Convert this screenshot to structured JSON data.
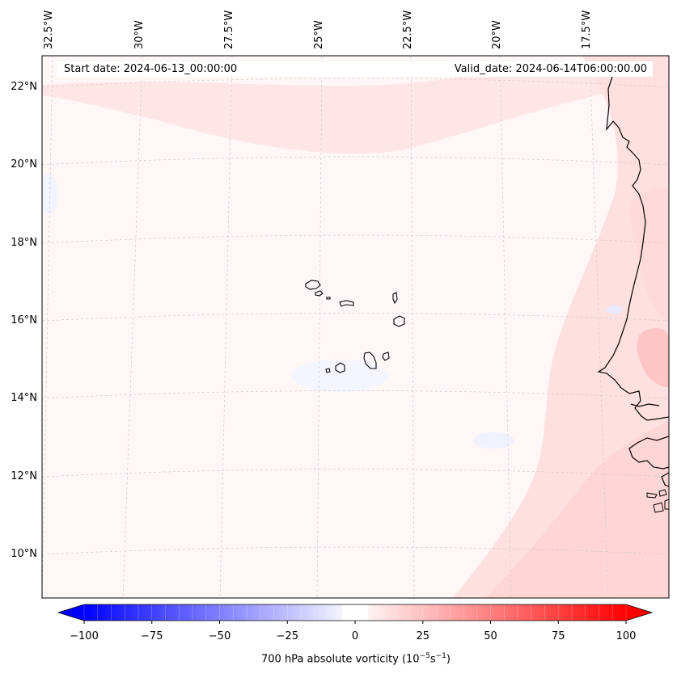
{
  "map": {
    "start_date": "Start date: 2024-06-13_00:00:00",
    "valid_date": "Valid_date: 2024-06-14T06:00:00.00",
    "lon_labels": [
      "32.5°W",
      "30°W",
      "27.5°W",
      "25°W",
      "22.5°W",
      "20°W",
      "17.5°W"
    ],
    "lat_labels": [
      "22°N",
      "20°N",
      "18°N",
      "16°N",
      "14°N",
      "12°N",
      "10°N"
    ],
    "extent": {
      "lon_min": -32.7,
      "lon_max": -16.5,
      "lat_min": 8.9,
      "lat_max": 22.8
    },
    "field_colors": {
      "ocean_background": "#fff6f6",
      "positive": "#ffdede",
      "strong_positive": "#ffc8c8",
      "negative": "#f4f6ff",
      "coastline": "#000000",
      "gridline": "#c8c8c8"
    },
    "islands": [
      "Santo Antão",
      "São Vicente",
      "Santa Luzia",
      "São Nicolau",
      "Sal",
      "Boa Vista",
      "Maio",
      "Santiago",
      "Fogo",
      "Brava"
    ]
  },
  "colorbar": {
    "label_prefix": "700 hPa absolute vorticity (10",
    "label_exp1": "−5",
    "label_mid": "s",
    "label_exp2": "−1",
    "label_suffix": ")",
    "ticks": [
      "−100",
      "−75",
      "−50",
      "−25",
      "0",
      "25",
      "50",
      "75",
      "100"
    ],
    "range": [
      -100,
      100
    ],
    "step": 5,
    "colormap": "bwr",
    "extend": "both"
  }
}
